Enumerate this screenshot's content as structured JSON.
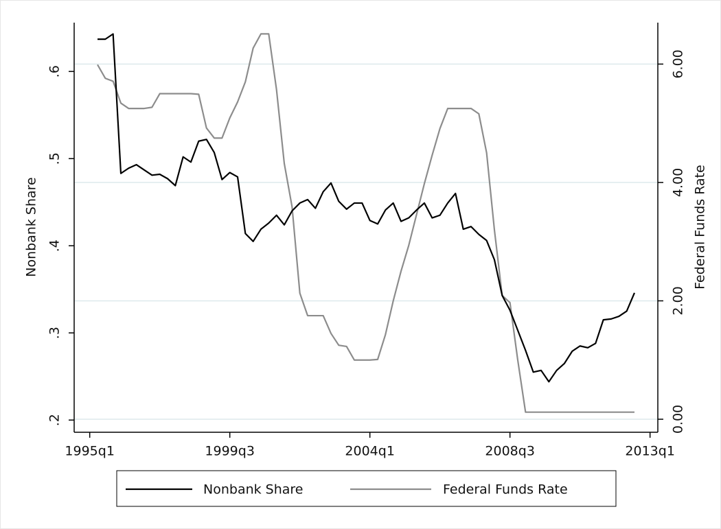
{
  "chart_data": {
    "type": "line",
    "x": [
      "1995q2",
      "1995q3",
      "1995q4",
      "1996q1",
      "1996q2",
      "1996q3",
      "1996q4",
      "1997q1",
      "1997q2",
      "1997q3",
      "1997q4",
      "1998q1",
      "1998q2",
      "1998q3",
      "1998q4",
      "1999q1",
      "1999q2",
      "1999q3",
      "1999q4",
      "2000q1",
      "2000q2",
      "2000q3",
      "2000q4",
      "2001q1",
      "2001q2",
      "2001q3",
      "2001q4",
      "2002q1",
      "2002q2",
      "2002q3",
      "2002q4",
      "2003q1",
      "2003q2",
      "2003q3",
      "2003q4",
      "2004q1",
      "2004q2",
      "2004q3",
      "2004q4",
      "2005q1",
      "2005q2",
      "2005q3",
      "2005q4",
      "2006q1",
      "2006q2",
      "2006q3",
      "2006q4",
      "2007q1",
      "2007q2",
      "2007q3",
      "2007q4",
      "2008q1",
      "2008q2",
      "2008q3",
      "2008q4",
      "2009q1",
      "2009q2",
      "2009q3",
      "2009q4",
      "2010q1",
      "2010q2",
      "2010q3",
      "2010q4",
      "2011q1",
      "2011q2",
      "2011q3",
      "2011q4",
      "2012q1",
      "2012q2",
      "2012q3"
    ],
    "series": [
      {
        "name": "Nonbank Share",
        "color": "#000000",
        "values": [
          0.637,
          0.637,
          0.643,
          0.483,
          0.489,
          0.493,
          0.487,
          0.481,
          0.482,
          0.477,
          0.469,
          0.502,
          0.496,
          0.52,
          0.522,
          0.507,
          0.476,
          0.484,
          0.479,
          0.414,
          0.405,
          0.419,
          0.426,
          0.435,
          0.424,
          0.44,
          0.449,
          0.453,
          0.443,
          0.462,
          0.472,
          0.451,
          0.442,
          0.449,
          0.449,
          0.429,
          0.425,
          0.441,
          0.449,
          0.428,
          0.432,
          0.441,
          0.449,
          0.432,
          0.435,
          0.449,
          0.46,
          0.419,
          0.422,
          0.413,
          0.406,
          0.384,
          0.343,
          0.326,
          0.303,
          0.28,
          0.255,
          0.257,
          0.244,
          0.257,
          0.265,
          0.279,
          0.285,
          0.283,
          0.288,
          0.315,
          0.316,
          0.319,
          0.325,
          0.346
        ]
      },
      {
        "name": "Federal Funds Rate",
        "color": "#8c8c8c",
        "axis": "y2",
        "values": [
          5.99,
          5.76,
          5.71,
          5.34,
          5.25,
          5.25,
          5.25,
          5.27,
          5.5,
          5.5,
          5.5,
          5.5,
          5.5,
          5.49,
          4.92,
          4.75,
          4.75,
          5.09,
          5.36,
          5.7,
          6.27,
          6.51,
          6.51,
          5.57,
          4.32,
          3.59,
          2.13,
          1.75,
          1.75,
          1.75,
          1.45,
          1.25,
          1.23,
          1.0,
          1.0,
          1.0,
          1.01,
          1.43,
          2.0,
          2.5,
          2.94,
          3.46,
          3.98,
          4.46,
          4.91,
          5.25,
          5.25,
          5.25,
          5.25,
          5.16,
          4.5,
          3.2,
          2.09,
          1.97,
          1.0,
          0.12,
          0.12,
          0.12,
          0.12,
          0.12,
          0.12,
          0.12,
          0.12,
          0.12,
          0.12,
          0.12,
          0.12,
          0.12,
          0.12,
          0.12
        ]
      }
    ],
    "y_label": "Nonbank Share",
    "y2_label": "Federal Funds Rate",
    "xlim": [
      "1994q3",
      "2013q2"
    ],
    "xticks": [
      "1995q1",
      "1999q3",
      "2004q1",
      "2008q3",
      "2013q1"
    ],
    "ylim": [
      0.186,
      0.656
    ],
    "yticks": [
      {
        "value": 0.2,
        "label": ".2"
      },
      {
        "value": 0.3,
        "label": ".3"
      },
      {
        "value": 0.4,
        "label": ".4"
      },
      {
        "value": 0.5,
        "label": ".5"
      },
      {
        "value": 0.6,
        "label": ".6"
      }
    ],
    "y2lim": [
      -0.22,
      6.7
    ],
    "y2ticks": [
      {
        "value": 0,
        "label": "0.00"
      },
      {
        "value": 2,
        "label": "2.00"
      },
      {
        "value": 4,
        "label": "4.00"
      },
      {
        "value": 6,
        "label": "6.00"
      }
    ],
    "grid": true,
    "grid_color": "#dde9ec",
    "legend": "bottom"
  }
}
